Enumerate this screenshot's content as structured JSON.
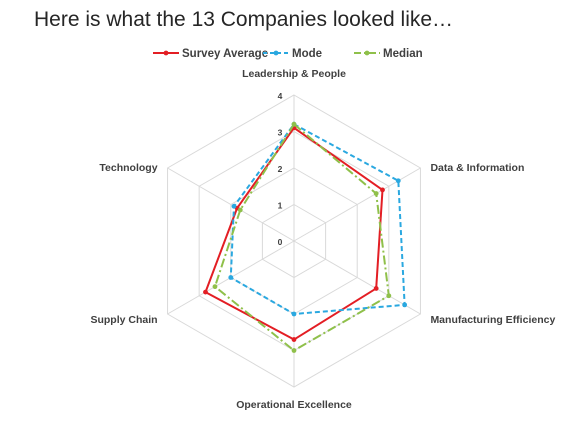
{
  "title": "Here is what the 13 Companies looked like…",
  "colors": {
    "survey_average": "#e31e24",
    "mode": "#2aa8e0",
    "median": "#8fc04a",
    "grid": "#d9d9d9",
    "text": "#404040"
  },
  "chart_data": {
    "type": "radar",
    "categories": [
      "Leadership & People",
      "Data & Information",
      "Manufacturing Efficiency",
      "Operational Excellence",
      "Supply Chain",
      "Technology"
    ],
    "rlim": [
      0,
      4
    ],
    "ticks": [
      0,
      1,
      2,
      3,
      4
    ],
    "tick_labels": [
      "0",
      "1",
      "2",
      "3",
      "4"
    ],
    "grid": true,
    "legend": "top",
    "series": [
      {
        "name": "Survey Average",
        "color": "#e31e24",
        "style": "solid",
        "marker": "circle",
        "values": [
          3.1,
          2.8,
          2.6,
          2.7,
          2.8,
          1.8
        ]
      },
      {
        "name": "Mode",
        "color": "#2aa8e0",
        "style": "dashed",
        "marker": "circle",
        "values": [
          3.2,
          3.3,
          3.5,
          2.0,
          2.0,
          1.9
        ]
      },
      {
        "name": "Median",
        "color": "#8fc04a",
        "style": "dashdot",
        "marker": "circle",
        "values": [
          3.2,
          2.6,
          3.0,
          3.0,
          2.5,
          1.7
        ]
      }
    ]
  }
}
